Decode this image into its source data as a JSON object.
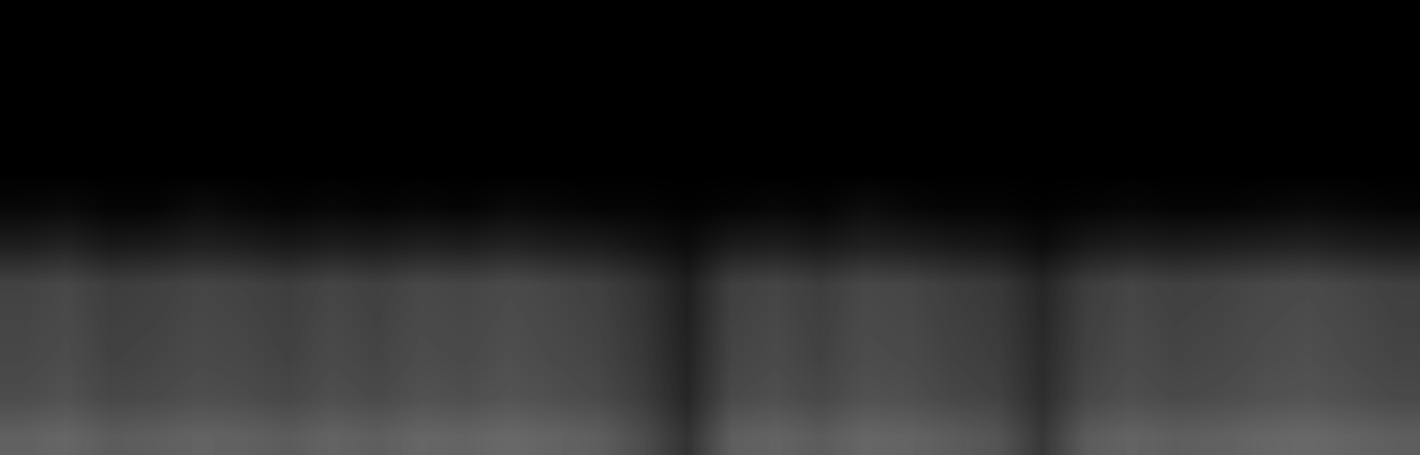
{
  "chart_data": {
    "type": "heatmap",
    "color": "gray",
    "tick_labels": false,
    "color_range": [
      0,
      1
    ],
    "cells": [
      [
        0.0,
        0.0,
        0.0,
        0.0,
        0.0,
        0.0,
        0.0,
        0.0,
        0.0,
        0.0,
        0.0,
        0.0,
        0.0,
        0.0,
        0.0,
        0.0,
        0.0,
        0.0,
        0.0,
        0.0,
        0.0,
        0.0,
        0.0,
        0.0,
        0.0,
        0.0,
        0.0,
        0.0,
        0.0,
        0.0,
        0.0,
        0.0
      ],
      [
        0.0,
        0.0,
        0.0,
        0.0,
        0.0,
        0.0,
        0.0,
        0.0,
        0.0,
        0.0,
        0.0,
        0.0,
        0.0,
        0.0,
        0.0,
        0.0,
        0.0,
        0.0,
        0.0,
        0.0,
        0.0,
        0.0,
        0.0,
        0.0,
        0.0,
        0.0,
        0.0,
        0.0,
        0.0,
        0.0,
        0.0,
        0.0
      ],
      [
        0.0,
        0.0,
        0.0,
        0.0,
        0.0,
        0.0,
        0.0,
        0.0,
        0.0,
        0.0,
        0.0,
        0.0,
        0.0,
        0.0,
        0.0,
        0.0,
        0.0,
        0.0,
        0.0,
        0.0,
        0.0,
        0.0,
        0.0,
        0.0,
        0.0,
        0.0,
        0.0,
        0.0,
        0.0,
        0.0,
        0.0,
        0.0
      ],
      [
        0.0,
        0.0,
        0.0,
        0.0,
        0.0,
        0.0,
        0.0,
        0.0,
        0.0,
        0.0,
        0.0,
        0.0,
        0.0,
        0.0,
        0.0,
        0.0,
        0.0,
        0.0,
        0.0,
        0.0,
        0.0,
        0.0,
        0.0,
        0.0,
        0.0,
        0.0,
        0.0,
        0.0,
        0.0,
        0.0,
        0.0,
        0.0
      ],
      [
        0.0,
        0.0,
        0.0,
        0.0,
        0.0,
        0.0,
        0.0,
        0.0,
        0.0,
        0.0,
        0.0,
        0.0,
        0.0,
        0.0,
        0.0,
        0.0,
        0.0,
        0.0,
        0.0,
        0.0,
        0.0,
        0.0,
        0.0,
        0.0,
        0.0,
        0.0,
        0.0,
        0.0,
        0.0,
        0.0,
        0.0,
        0.0
      ],
      [
        0.03,
        0.04,
        0.02,
        0.02,
        0.05,
        0.03,
        0.02,
        0.03,
        0.02,
        0.03,
        0.02,
        0.04,
        0.03,
        0.02,
        0.02,
        0.01,
        0.02,
        0.03,
        0.02,
        0.05,
        0.03,
        0.02,
        0.02,
        0.01,
        0.02,
        0.03,
        0.02,
        0.02,
        0.03,
        0.04,
        0.03,
        0.02
      ],
      [
        0.12,
        0.14,
        0.1,
        0.11,
        0.13,
        0.12,
        0.1,
        0.12,
        0.11,
        0.13,
        0.12,
        0.14,
        0.12,
        0.11,
        0.08,
        0.05,
        0.11,
        0.12,
        0.1,
        0.13,
        0.12,
        0.1,
        0.09,
        0.05,
        0.1,
        0.12,
        0.11,
        0.12,
        0.13,
        0.14,
        0.12,
        0.11
      ],
      [
        0.26,
        0.28,
        0.24,
        0.25,
        0.27,
        0.26,
        0.24,
        0.27,
        0.25,
        0.28,
        0.27,
        0.29,
        0.27,
        0.25,
        0.2,
        0.12,
        0.25,
        0.27,
        0.24,
        0.28,
        0.27,
        0.24,
        0.22,
        0.15,
        0.24,
        0.27,
        0.25,
        0.26,
        0.28,
        0.29,
        0.27,
        0.25
      ],
      [
        0.27,
        0.29,
        0.25,
        0.26,
        0.28,
        0.27,
        0.25,
        0.28,
        0.26,
        0.29,
        0.28,
        0.3,
        0.28,
        0.26,
        0.21,
        0.13,
        0.26,
        0.28,
        0.25,
        0.29,
        0.28,
        0.25,
        0.23,
        0.16,
        0.25,
        0.28,
        0.26,
        0.27,
        0.29,
        0.3,
        0.28,
        0.26
      ],
      [
        0.28,
        0.3,
        0.26,
        0.27,
        0.29,
        0.28,
        0.26,
        0.29,
        0.27,
        0.3,
        0.29,
        0.31,
        0.29,
        0.27,
        0.22,
        0.14,
        0.27,
        0.29,
        0.26,
        0.3,
        0.29,
        0.26,
        0.24,
        0.17,
        0.26,
        0.29,
        0.27,
        0.28,
        0.3,
        0.31,
        0.29,
        0.27
      ],
      [
        0.3,
        0.32,
        0.28,
        0.29,
        0.31,
        0.3,
        0.28,
        0.31,
        0.29,
        0.32,
        0.31,
        0.33,
        0.31,
        0.29,
        0.24,
        0.15,
        0.29,
        0.31,
        0.28,
        0.32,
        0.31,
        0.28,
        0.26,
        0.18,
        0.28,
        0.31,
        0.29,
        0.3,
        0.32,
        0.33,
        0.31,
        0.29
      ],
      [
        0.38,
        0.4,
        0.36,
        0.37,
        0.39,
        0.38,
        0.36,
        0.39,
        0.37,
        0.4,
        0.39,
        0.41,
        0.39,
        0.37,
        0.3,
        0.2,
        0.37,
        0.39,
        0.36,
        0.4,
        0.39,
        0.36,
        0.33,
        0.22,
        0.36,
        0.39,
        0.37,
        0.38,
        0.4,
        0.41,
        0.39,
        0.37
      ]
    ]
  }
}
